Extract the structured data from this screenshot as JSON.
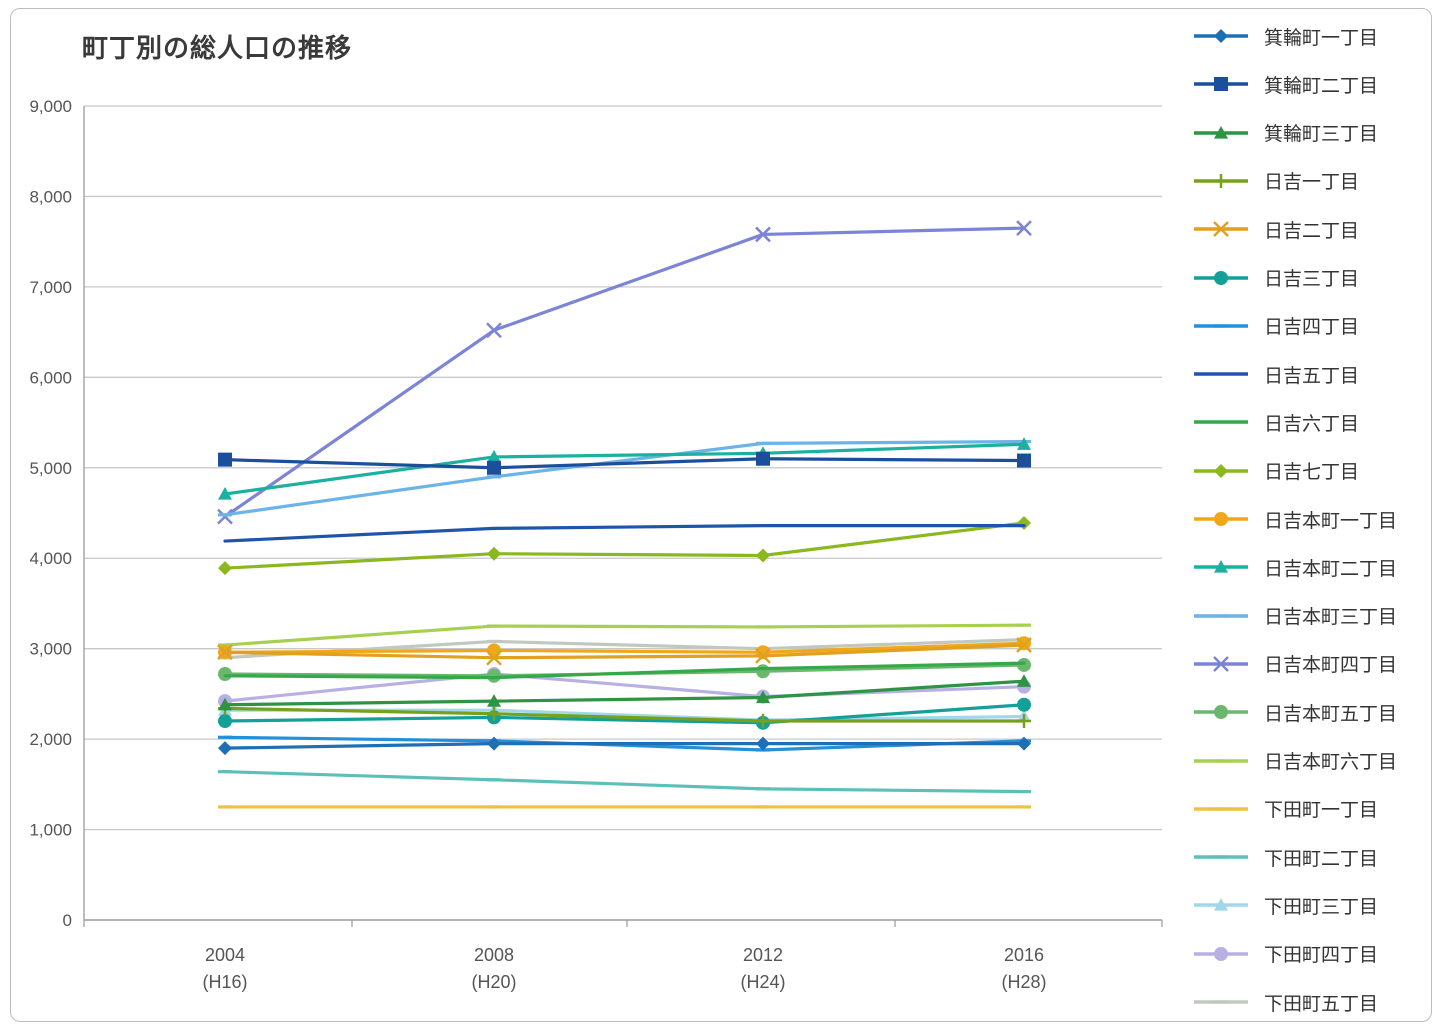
{
  "chart_data": {
    "type": "line",
    "title": "町丁別の総人口の推移",
    "xlabel": "",
    "ylabel": "",
    "categories": [
      {
        "year": "2004",
        "era": "(H16)"
      },
      {
        "year": "2008",
        "era": "(H20)"
      },
      {
        "year": "2012",
        "era": "(H24)"
      },
      {
        "year": "2016",
        "era": "(H28)"
      }
    ],
    "ylim": [
      0,
      9000
    ],
    "yticks": [
      "0",
      "1,000",
      "2,000",
      "3,000",
      "4,000",
      "5,000",
      "6,000",
      "7,000",
      "8,000",
      "9,000"
    ],
    "grid": true,
    "legend_position": "right",
    "series": [
      {
        "name": "箕輪町一丁目",
        "color": "#1f6fb4",
        "marker": "diamond",
        "values": [
          1900,
          1950,
          1950,
          1950
        ]
      },
      {
        "name": "箕輪町二丁目",
        "color": "#1b4f9c",
        "marker": "square",
        "values": [
          5090,
          5000,
          5100,
          5080
        ]
      },
      {
        "name": "箕輪町三丁目",
        "color": "#2e9443",
        "marker": "triangle",
        "values": [
          2380,
          2420,
          2460,
          2640
        ]
      },
      {
        "name": "日吉一丁目",
        "color": "#77a11c",
        "marker": "plus",
        "values": [
          2340,
          2280,
          2200,
          2200
        ]
      },
      {
        "name": "日吉二丁目",
        "color": "#e0a020",
        "marker": "x",
        "values": [
          2960,
          2900,
          2920,
          3040
        ]
      },
      {
        "name": "日吉三丁目",
        "color": "#14a098",
        "marker": "circle",
        "values": [
          2200,
          2240,
          2180,
          2380
        ]
      },
      {
        "name": "日吉四丁目",
        "color": "#2490d8",
        "marker": "dash",
        "values": [
          2020,
          1980,
          1880,
          1980
        ]
      },
      {
        "name": "日吉五丁目",
        "color": "#1e55a8",
        "marker": "none",
        "values": [
          4190,
          4330,
          4360,
          4360
        ]
      },
      {
        "name": "日吉六丁目",
        "color": "#35a84a",
        "marker": "none",
        "values": [
          2700,
          2680,
          2780,
          2840
        ]
      },
      {
        "name": "日吉七丁目",
        "color": "#8ab81e",
        "marker": "diamond",
        "values": [
          3890,
          4050,
          4030,
          4390
        ]
      },
      {
        "name": "日吉本町一丁目",
        "color": "#f0a81a",
        "marker": "circle",
        "values": [
          2960,
          2980,
          2960,
          3060
        ]
      },
      {
        "name": "日吉本町二丁目",
        "color": "#1bb0a0",
        "marker": "triangle",
        "values": [
          4710,
          5120,
          5160,
          5260
        ]
      },
      {
        "name": "日吉本町三丁目",
        "color": "#6cb4e8",
        "marker": "dash",
        "values": [
          4480,
          4900,
          5270,
          5290
        ]
      },
      {
        "name": "日吉本町四丁目",
        "color": "#7b84d6",
        "marker": "x",
        "values": [
          4460,
          6520,
          7580,
          7650
        ]
      },
      {
        "name": "日吉本町五丁目",
        "color": "#6ab86e",
        "marker": "circle",
        "values": [
          2720,
          2700,
          2750,
          2820
        ]
      },
      {
        "name": "日吉本町六丁目",
        "color": "#a8d050",
        "marker": "dash",
        "values": [
          3040,
          3250,
          3240,
          3260
        ]
      },
      {
        "name": "下田町一丁目",
        "color": "#f2c040",
        "marker": "dash",
        "values": [
          1250,
          1250,
          1250,
          1250
        ]
      },
      {
        "name": "下田町二丁目",
        "color": "#5cc0b8",
        "marker": "dash",
        "values": [
          1640,
          1550,
          1450,
          1420
        ]
      },
      {
        "name": "下田町三丁目",
        "color": "#a0d8ea",
        "marker": "triangle",
        "values": [
          2320,
          2320,
          2210,
          2250
        ]
      },
      {
        "name": "下田町四丁目",
        "color": "#b8b0e4",
        "marker": "circle",
        "values": [
          2420,
          2720,
          2470,
          2580
        ]
      },
      {
        "name": "下田町五丁目",
        "color": "#c0c8c0",
        "marker": "dash",
        "values": [
          2900,
          3080,
          3000,
          3100
        ]
      }
    ]
  }
}
